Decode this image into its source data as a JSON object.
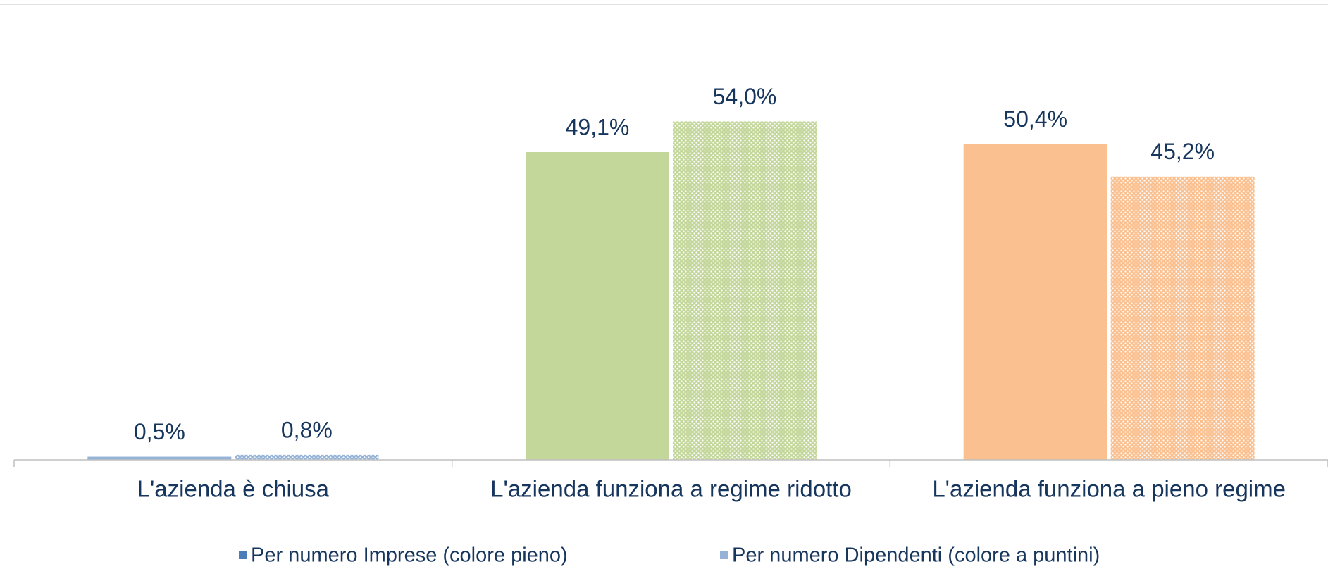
{
  "chart_data": {
    "type": "bar",
    "categories": [
      "L'azienda è chiusa",
      "L'azienda funziona a regime ridotto",
      "L'azienda funziona a pieno regime"
    ],
    "series": [
      {
        "name": "Per numero Imprese (colore pieno)",
        "color": "#4a7ebb",
        "pattern": "solid",
        "point_colors": [
          "#95b3d7",
          "#c4d79b",
          "#fac090"
        ],
        "values": [
          0.5,
          49.1,
          50.4
        ],
        "value_labels": [
          "0,5%",
          "49,1%",
          "50,4%"
        ]
      },
      {
        "name": "Per numero Dipendenti (colore a puntini)",
        "color": "#95b3d7",
        "pattern": "dots",
        "point_colors": [
          "#95b3d7",
          "#c4d79b",
          "#fac090"
        ],
        "values": [
          0.8,
          54.0,
          45.2
        ],
        "value_labels": [
          "0,8%",
          "54,0%",
          "45,2%"
        ]
      }
    ],
    "legend": "bottom"
  }
}
